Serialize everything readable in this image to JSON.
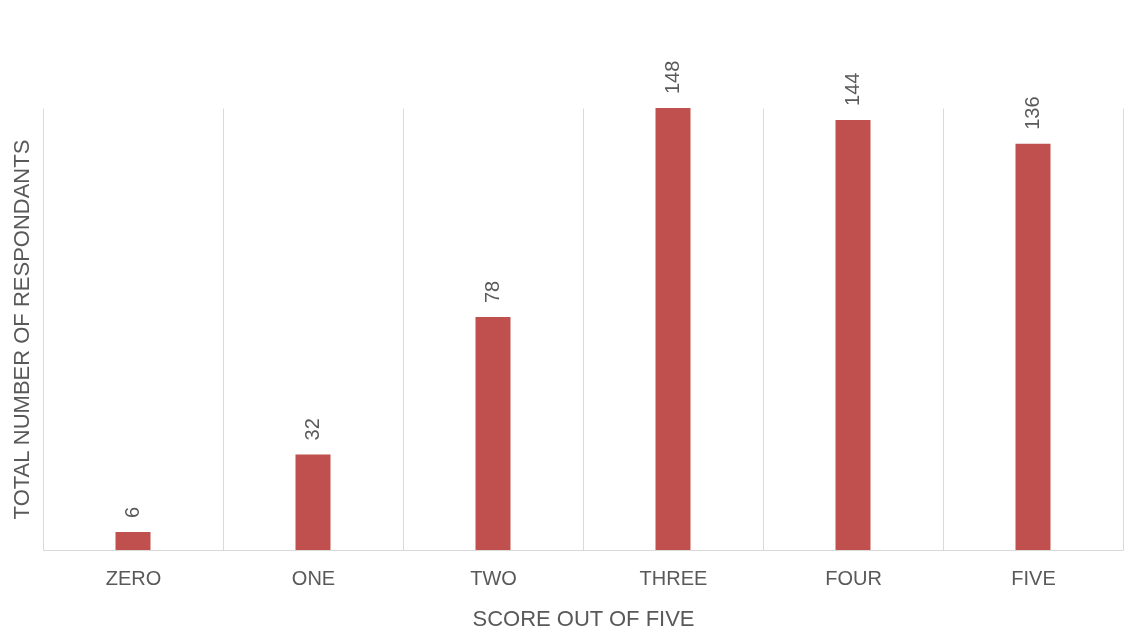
{
  "chart_data": {
    "type": "bar",
    "xlabel": "SCORE OUT OF FIVE",
    "ylabel": "TOTAL NUMBER OF RESPONDANTS",
    "categories": [
      "ZERO",
      "ONE",
      "TWO",
      "THREE",
      "FOUR",
      "FIVE"
    ],
    "values": [
      6,
      32,
      78,
      148,
      144,
      136
    ],
    "color": "#c0504d",
    "data_labels": true,
    "grid": "x"
  }
}
